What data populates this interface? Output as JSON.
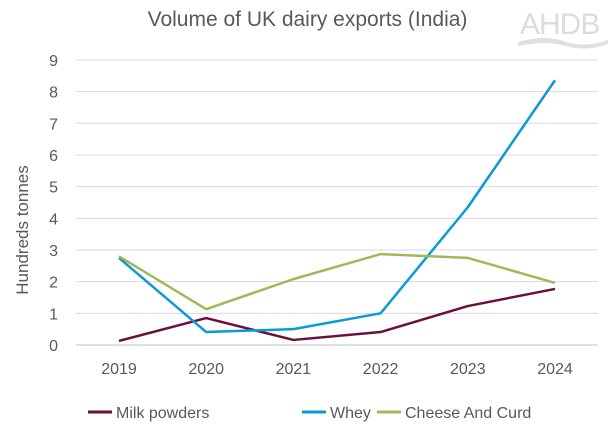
{
  "chart_data": {
    "type": "line",
    "title": "Volume of UK dairy exports (India)",
    "xlabel": "",
    "ylabel": "Hundreds tonnes",
    "categories": [
      "2019",
      "2020",
      "2021",
      "2022",
      "2023",
      "2024"
    ],
    "ylim": [
      0,
      9
    ],
    "yticks": [
      "0",
      "1",
      "2",
      "3",
      "4",
      "5",
      "6",
      "7",
      "8",
      "9"
    ],
    "grid": true,
    "legend": "bottom",
    "series": [
      {
        "name": "Milk powders",
        "color": "#6b0f3b",
        "values": [
          0.13,
          0.85,
          0.16,
          0.41,
          1.23,
          1.77
        ]
      },
      {
        "name": "Whey",
        "color": "#0b9ad6",
        "values": [
          2.75,
          0.41,
          0.5,
          1.0,
          4.35,
          8.36
        ]
      },
      {
        "name": "Cheese And Curd",
        "color": "#9bbb59",
        "values": [
          2.8,
          1.13,
          2.08,
          2.87,
          2.75,
          1.96
        ]
      }
    ]
  },
  "logo": {
    "text": "AHDB"
  }
}
